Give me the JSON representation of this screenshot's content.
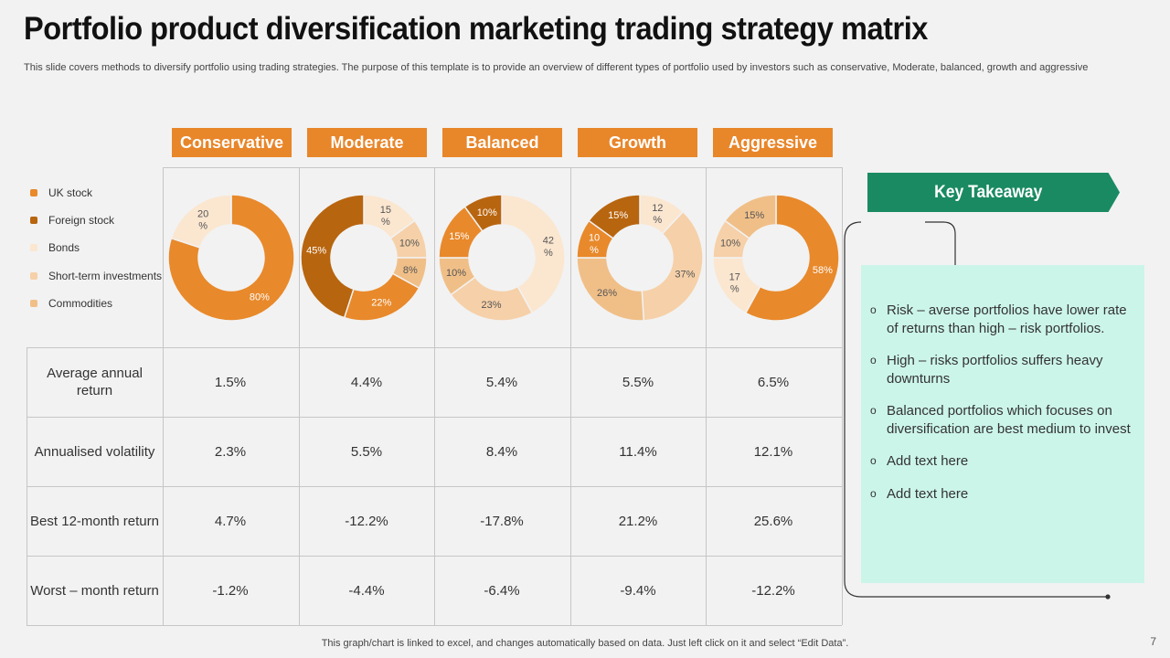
{
  "title": "Portfolio product diversification marketing trading strategy matrix",
  "subtitle": "This slide covers methods to diversify portfolio using trading strategies. The purpose of this template is to provide an overview of different types of portfolio used by  investors such as conservative, Moderate, balanced, growth and aggressive",
  "chart_data": {
    "type": "donut",
    "categories": [
      "UK stock",
      "Foreign stock",
      "Bonds",
      "Short-term investments",
      "Commodities"
    ],
    "colors": [
      "#e8892b",
      "#b8650f",
      "#fbe6d0",
      "#f6d0a8",
      "#f0bf88"
    ],
    "portfolios": [
      {
        "name": "Conservative",
        "slices": [
          {
            "category": "UK stock",
            "value": 80,
            "label": "80%"
          },
          {
            "category": "Bonds",
            "value": 20,
            "label": "20 %"
          }
        ]
      },
      {
        "name": "Moderate",
        "slices": [
          {
            "category": "Bonds",
            "value": 15,
            "label": "15 %"
          },
          {
            "category": "Short-term investments",
            "value": 10,
            "label": "10%"
          },
          {
            "category": "Commodities",
            "value": 8,
            "label": "8%"
          },
          {
            "category": "UK stock",
            "value": 22,
            "label": "22%"
          },
          {
            "category": "Foreign stock",
            "value": 45,
            "label": "45%"
          }
        ]
      },
      {
        "name": "Balanced",
        "slices": [
          {
            "category": "Bonds",
            "value": 42,
            "label": "42 %"
          },
          {
            "category": "Short-term investments",
            "value": 23,
            "label": "23%"
          },
          {
            "category": "Commodities",
            "value": 10,
            "label": "10%"
          },
          {
            "category": "UK stock",
            "value": 15,
            "label": "15%"
          },
          {
            "category": "Foreign stock",
            "value": 10,
            "label": "10%"
          }
        ]
      },
      {
        "name": "Growth",
        "slices": [
          {
            "category": "Bonds",
            "value": 12,
            "label": "12 %"
          },
          {
            "category": "Short-term investments",
            "value": 37,
            "label": "37%"
          },
          {
            "category": "Commodities",
            "value": 26,
            "label": "26%"
          },
          {
            "category": "UK stock",
            "value": 10,
            "label": "10 %"
          },
          {
            "category": "Foreign stock",
            "value": 15,
            "label": "15%"
          }
        ]
      },
      {
        "name": "Aggressive",
        "slices": [
          {
            "category": "UK stock",
            "value": 58,
            "label": "58%"
          },
          {
            "category": "Bonds",
            "value": 17,
            "label": "17 %"
          },
          {
            "category": "Short-term investments",
            "value": 10,
            "label": "10%"
          },
          {
            "category": "Commodities",
            "value": 15,
            "label": "15%"
          }
        ]
      }
    ]
  },
  "table": {
    "rows": [
      {
        "label": "Average annual return",
        "values": [
          "1.5%",
          "4.4%",
          "5.4%",
          "5.5%",
          "6.5%"
        ]
      },
      {
        "label": "Annualised volatility",
        "values": [
          "2.3%",
          "5.5%",
          "8.4%",
          "11.4%",
          "12.1%"
        ]
      },
      {
        "label": "Best 12-month return",
        "values": [
          "4.7%",
          "-12.2%",
          "-17.8%",
          "21.2%",
          "25.6%"
        ]
      },
      {
        "label": "Worst – month return",
        "values": [
          "-1.2%",
          "-4.4%",
          "-6.4%",
          "-9.4%",
          "-12.2%"
        ]
      }
    ]
  },
  "key_takeaway": {
    "title": "Key Takeaway",
    "bullet_icon": "circle-bullet-icon",
    "items": [
      "Risk – averse portfolios have lower rate of returns than high – risk portfolios.",
      "High – risks portfolios suffers heavy downturns",
      "Balanced portfolios which focuses on diversification are best medium to invest",
      "Add text here",
      "Add text here"
    ],
    "box_color": "#ccf5ea",
    "banner_color": "#1a8a62"
  },
  "footer": "This graph/chart is linked to excel,  and changes automatically based on data. Just left click on it and select “Edit Data”.",
  "page_number": "7"
}
